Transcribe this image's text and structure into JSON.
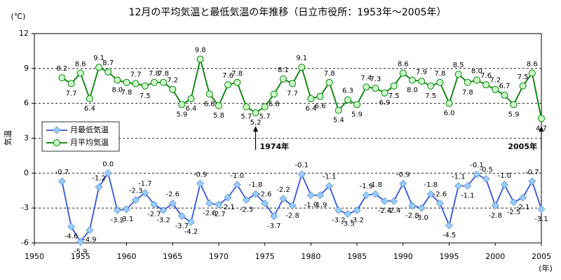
{
  "chart_data": {
    "type": "line",
    "title": "12月の平均気温と最低気温の年推移（日立市役所：1953年～2005年）",
    "y_unit_label": "(℃)",
    "y_axis_label": "気温",
    "x_unit_label": "(年)",
    "x": [
      1953,
      1954,
      1955,
      1956,
      1957,
      1958,
      1959,
      1960,
      1961,
      1962,
      1963,
      1964,
      1965,
      1966,
      1967,
      1968,
      1969,
      1970,
      1971,
      1972,
      1973,
      1974,
      1975,
      1976,
      1977,
      1978,
      1979,
      1980,
      1981,
      1982,
      1983,
      1984,
      1985,
      1986,
      1987,
      1988,
      1989,
      1990,
      1991,
      1992,
      1993,
      1994,
      1995,
      1996,
      1997,
      1998,
      1999,
      2000,
      2001,
      2002,
      2003,
      2004,
      2005
    ],
    "series": [
      {
        "name": "月最低気温",
        "color": "#3355dd",
        "marker": "diamond",
        "marker_color": "#99ccff",
        "values": [
          -0.7,
          -4.6,
          -5.9,
          -4.9,
          -1.2,
          0.0,
          -3.2,
          -3.1,
          -2.3,
          -1.7,
          -2.7,
          -3.2,
          -2.6,
          -3.7,
          -4.2,
          -0.9,
          -2.6,
          -2.7,
          -2.1,
          -1.0,
          -2.3,
          -1.8,
          -2.6,
          -3.7,
          -2.2,
          -2.8,
          -0.1,
          -1.9,
          -1.9,
          -1.1,
          -3.2,
          -3.5,
          -3.2,
          -1.9,
          -1.8,
          -2.4,
          -2.4,
          -0.9,
          -2.8,
          -3.0,
          -1.8,
          -2.6,
          -4.5,
          -1.1,
          -1.1,
          -0.1,
          -0.5,
          -2.8,
          -1.0,
          -2.5,
          -2.1,
          -0.7,
          -3.1
        ],
        "value_labels": [
          "-0.7",
          "-4.6",
          "-5.9",
          "-4.9",
          "-1.2",
          "0.0",
          "-3.2",
          "-3.1",
          "-2.3",
          "-1.7",
          "-2.7",
          "-3.2",
          "-2.6",
          "-3.7",
          "-4.2",
          "-0.9",
          "-2.6",
          "-2.7",
          "-2.1",
          "-1.0",
          "-2.3",
          "-1.8",
          "-2.6",
          "-3.7",
          "-2.2",
          "-2.8",
          "-0.1",
          "-1.9",
          "-1.9",
          "-1.1",
          "-3.2",
          "-3.5",
          "-3.2",
          "-1.9",
          "-1.8",
          "-2.4",
          "-2.4",
          "-0.9",
          "-2.8",
          "-3.0",
          "-1.8",
          "-2.6",
          "-4.5",
          "-1.1",
          "-1.1",
          "-0.1",
          "-0.5",
          "-2.8",
          "-1.0",
          "-2.5",
          "-2.1",
          "-0.7",
          "-3.1"
        ]
      },
      {
        "name": "月平均気温",
        "color": "#008000",
        "marker": "circle",
        "marker_color": "#ccffcc",
        "values": [
          8.2,
          7.7,
          8.6,
          6.4,
          9.1,
          8.7,
          8.0,
          7.8,
          7.7,
          7.5,
          7.8,
          7.8,
          7.2,
          5.9,
          6.4,
          9.8,
          6.8,
          5.8,
          7.6,
          7.8,
          5.7,
          5.2,
          5.7,
          6.8,
          8.1,
          7.7,
          9.1,
          6.4,
          6.6,
          7.8,
          5.4,
          6.3,
          5.9,
          7.4,
          7.3,
          6.9,
          7.5,
          8.6,
          8.0,
          7.9,
          7.5,
          7.8,
          6.0,
          8.5,
          7.8,
          8.0,
          7.6,
          7.2,
          6.7,
          5.9,
          7.5,
          8.6,
          4.7
        ],
        "value_labels": [
          "8.2",
          "7.7",
          "8.6",
          "6.4",
          "9.1",
          "8.7",
          "8.0",
          "7.8",
          "7.7",
          "7.5",
          "7.8",
          "7.8",
          "7.2",
          "5.9",
          "6.4",
          "9.8",
          "6.8",
          "5.8",
          "7.6",
          "7.8",
          "5.7",
          "5.2",
          "5.7",
          "6.8",
          "8.1",
          "7.7",
          "9.1",
          "6.4",
          "6.6",
          "7.8",
          "5.4",
          "6.3",
          "5.9",
          "7.4",
          "7.3",
          "6.9",
          "7.5",
          "8.6",
          "8.0",
          "7.9",
          "7.5",
          "7.8",
          "6.0",
          "8.5",
          "7.8",
          "8.0",
          "7.6",
          "7.2",
          "6.7",
          "5.9",
          "7.5",
          "8.6",
          "4.7"
        ]
      }
    ],
    "annotations": [
      {
        "text": "1974年",
        "x": 1974
      },
      {
        "text": "2005年",
        "x": 2005
      }
    ],
    "xlim": [
      1950,
      2005
    ],
    "xticks": [
      1950,
      1955,
      1960,
      1965,
      1970,
      1975,
      1980,
      1985,
      1990,
      1995,
      2000,
      2005
    ],
    "ylim": [
      -6,
      12
    ],
    "yticks": [
      -6,
      -3,
      0,
      3,
      6,
      9,
      12
    ],
    "grid": true,
    "legend": "left"
  }
}
